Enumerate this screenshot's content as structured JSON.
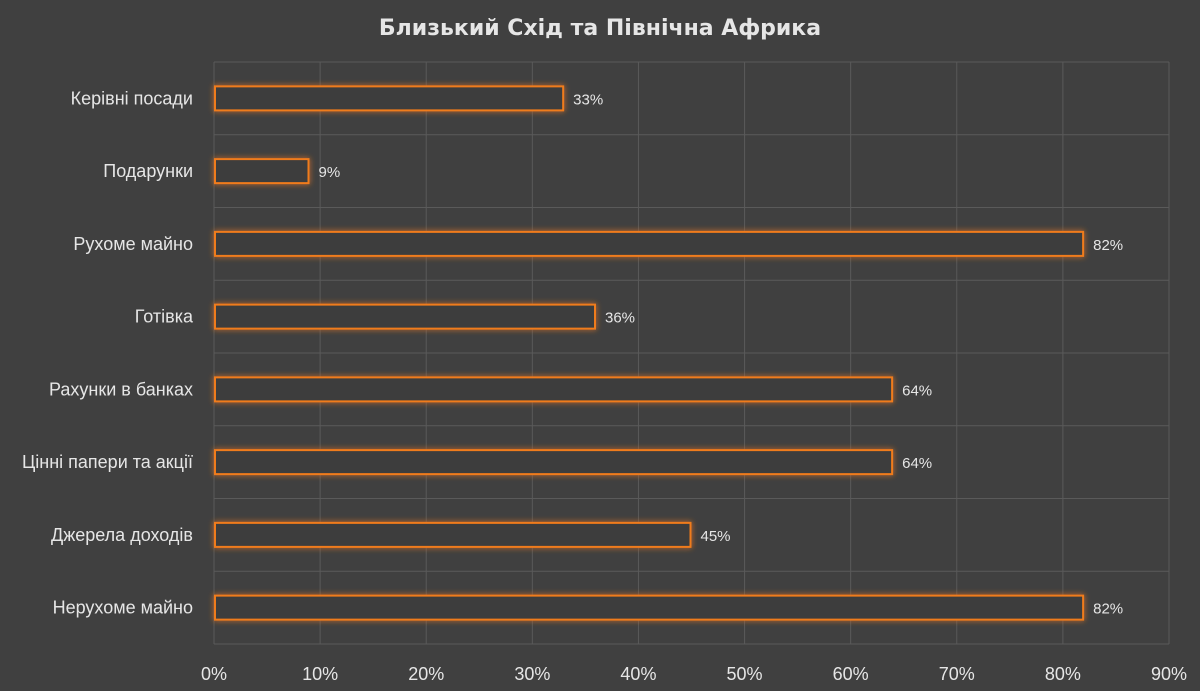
{
  "chart_data": {
    "type": "bar",
    "orientation": "horizontal",
    "title": "Близький Схід та Північна Африка",
    "categories": [
      "Керівні посади",
      "Подарунки",
      "Рухоме майно",
      "Готівка",
      "Рахунки в банках",
      "Цінні папери та акції",
      "Джерела доходів",
      "Нерухоме майно"
    ],
    "values": [
      33,
      9,
      82,
      36,
      64,
      64,
      45,
      82
    ],
    "value_labels": [
      "33%",
      "9%",
      "82%",
      "36%",
      "64%",
      "64%",
      "45%",
      "82%"
    ],
    "xlim": [
      0,
      90
    ],
    "x_ticks": [
      0,
      10,
      20,
      30,
      40,
      50,
      60,
      70,
      80,
      90
    ],
    "x_tick_labels": [
      "0%",
      "10%",
      "20%",
      "30%",
      "40%",
      "50%",
      "60%",
      "70%",
      "80%",
      "90%"
    ],
    "grid": true,
    "legend": "none",
    "colors": {
      "background": "#404040",
      "bar_outline": "#f07b1c",
      "bar_glow": "#ff8c1a",
      "text": "#e6e6e6",
      "grid": "#5a5a5a"
    }
  }
}
